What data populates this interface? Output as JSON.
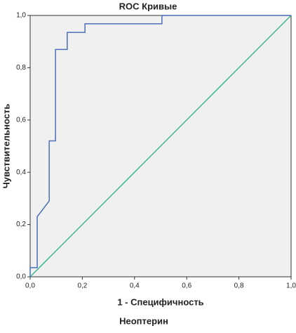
{
  "chart_data": {
    "type": "line",
    "title": "ROC Кривые",
    "y_label": "Чувствительность",
    "x_label": "1 - Специфичность",
    "caption": "Неоптерин",
    "xlim": [
      0,
      1
    ],
    "ylim": [
      0,
      1
    ],
    "xticks": [
      {
        "value": 0,
        "label": "0,0"
      },
      {
        "value": 0.2,
        "label": "0,2"
      },
      {
        "value": 0.4,
        "label": "0,4"
      },
      {
        "value": 0.6,
        "label": "0,6"
      },
      {
        "value": 0.8,
        "label": "0,8"
      },
      {
        "value": 1,
        "label": "1,0"
      }
    ],
    "yticks": [
      {
        "value": 0,
        "label": "0,0"
      },
      {
        "value": 0.2,
        "label": "0,2"
      },
      {
        "value": 0.4,
        "label": "0,4"
      },
      {
        "value": 0.6,
        "label": "0,6"
      },
      {
        "value": 0.8,
        "label": "0,8"
      },
      {
        "value": 1,
        "label": "1,0"
      }
    ],
    "plot_background": "#f0f0f0",
    "series": [
      {
        "color": "#4a6fb5",
        "x": [
          0,
          0,
          0.027,
          0.027,
          0.073,
          0.073,
          0.097,
          0.097,
          0.142,
          0.142,
          0.21,
          0.21,
          0.505,
          0.505,
          1
        ],
        "values": [
          0,
          0.035,
          0.035,
          0.23,
          0.29,
          0.52,
          0.52,
          0.87,
          0.87,
          0.935,
          0.935,
          0.968,
          0.968,
          1,
          1
        ]
      },
      {
        "color": "#3cb88a",
        "x": [
          0,
          1
        ],
        "values": [
          0,
          1
        ]
      }
    ]
  }
}
